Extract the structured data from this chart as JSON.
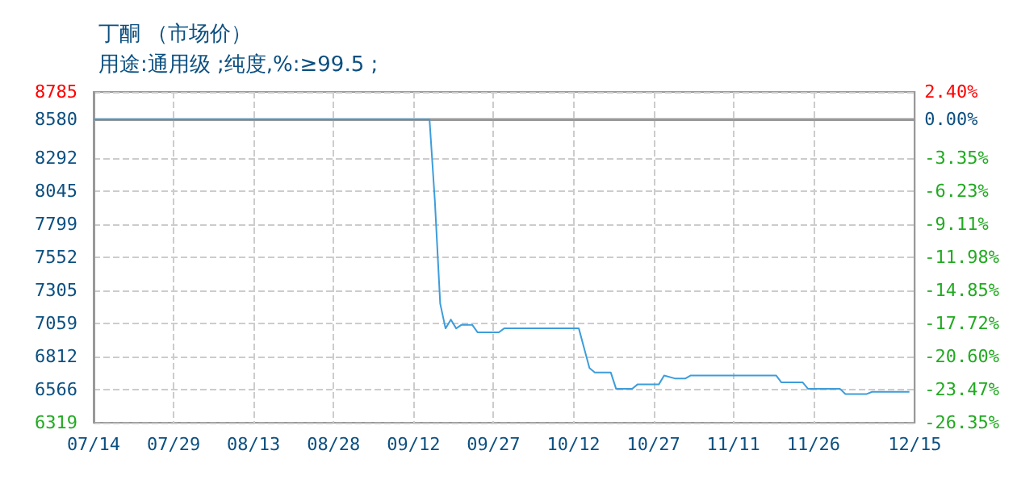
{
  "chart_data": {
    "type": "line",
    "title": "丁酮 （市场价）",
    "subtitle": "用途:通用级 ;纯度,%:≥99.5 ;",
    "x": [
      "--07-14",
      "--09-15",
      "--09-16",
      "--09-17",
      "--09-18",
      "--09-19",
      "--09-20",
      "--09-21",
      "--09-23",
      "--09-24",
      "--09-28",
      "--09-29",
      "--10-13",
      "--10-14",
      "--10-15",
      "--10-16",
      "--10-19",
      "--10-20",
      "--10-23",
      "--10-24",
      "--10-28",
      "--10-29",
      "--10-31",
      "--11-02",
      "--11-03",
      "--11-19",
      "--11-20",
      "--11-24",
      "--11-25",
      "--12-01",
      "--12-02",
      "--12-06",
      "--12-07",
      "--12-14"
    ],
    "series": [
      {
        "color": "#3d9ddb",
        "values": [
          8580,
          8580,
          7973,
          7207,
          7022,
          7088,
          7022,
          7049,
          7049,
          6993,
          6993,
          7022,
          7022,
          6874,
          6726,
          6693,
          6693,
          6571,
          6571,
          6604,
          6604,
          6671,
          6649,
          6649,
          6671,
          6671,
          6619,
          6619,
          6571,
          6571,
          6533,
          6533,
          6549,
          6549
        ]
      }
    ],
    "xlim": [
      "--07-14",
      "--12-15"
    ],
    "xticks": [
      {
        "value": "--07-14",
        "label": "07/14"
      },
      {
        "value": "--07-29",
        "label": "07/29"
      },
      {
        "value": "--08-13",
        "label": "08/13"
      },
      {
        "value": "--08-28",
        "label": "08/28"
      },
      {
        "value": "--09-12",
        "label": "09/12"
      },
      {
        "value": "--09-27",
        "label": "09/27"
      },
      {
        "value": "--10-12",
        "label": "10/12"
      },
      {
        "value": "--10-27",
        "label": "10/27"
      },
      {
        "value": "--11-11",
        "label": "11/11"
      },
      {
        "value": "--11-26",
        "label": "11/26"
      },
      {
        "value": "--12-15",
        "label": "12/15"
      }
    ],
    "ylim": [
      6319,
      8785
    ],
    "yticks": [
      6319,
      6566,
      6812,
      7059,
      7305,
      7552,
      7799,
      8045,
      8292,
      8580,
      8785
    ],
    "y2lim": [
      -26.35,
      2.4
    ],
    "y2ticks": [
      {
        "value": -26.35,
        "label": "-26.35%"
      },
      {
        "value": -23.47,
        "label": "-23.47%"
      },
      {
        "value": -20.6,
        "label": "-20.60%"
      },
      {
        "value": -17.72,
        "label": "-17.72%"
      },
      {
        "value": -14.85,
        "label": "-14.85%"
      },
      {
        "value": -11.98,
        "label": "-11.98%"
      },
      {
        "value": -9.11,
        "label": "-9.11%"
      },
      {
        "value": -6.23,
        "label": "-6.23%"
      },
      {
        "value": -3.35,
        "label": "-3.35%"
      },
      {
        "value": 0,
        "label": "0.00%"
      },
      {
        "value": 2.4,
        "label": "2.40%"
      }
    ],
    "ref_lines": [
      {
        "axis": "y2",
        "value": 0,
        "color": "#999999",
        "line_style": "solid"
      }
    ],
    "grid": true,
    "marker": "none",
    "line_style": "solid"
  }
}
